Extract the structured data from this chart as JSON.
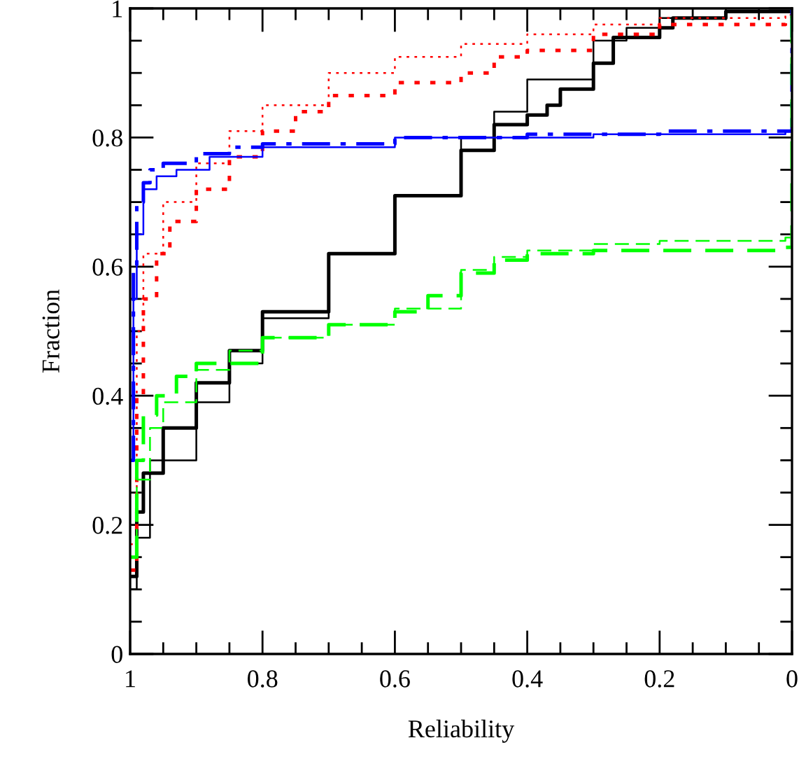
{
  "chart_data": {
    "type": "step",
    "xlabel": "Reliability",
    "ylabel": "Fraction",
    "xlim": [
      1,
      0
    ],
    "ylim": [
      0,
      1
    ],
    "xticks": [
      1,
      {
        "value": 0.95,
        "label": null
      },
      {
        "value": 0.9,
        "label": null
      },
      {
        "value": 0.85,
        "label": null
      },
      0.8,
      {
        "value": 0.75,
        "label": null
      },
      {
        "value": 0.7,
        "label": null
      },
      {
        "value": 0.65,
        "label": null
      },
      0.6,
      {
        "value": 0.55,
        "label": null
      },
      {
        "value": 0.5,
        "label": null
      },
      {
        "value": 0.45,
        "label": null
      },
      0.4,
      {
        "value": 0.35,
        "label": null
      },
      {
        "value": 0.3,
        "label": null
      },
      {
        "value": 0.25,
        "label": null
      },
      0.2,
      {
        "value": 0.15,
        "label": null
      },
      {
        "value": 0.1,
        "label": null
      },
      {
        "value": 0.05,
        "label": null
      },
      0
    ],
    "yticks": [
      0,
      {
        "value": 0.05,
        "label": null
      },
      {
        "value": 0.1,
        "label": null
      },
      {
        "value": 0.15,
        "label": null
      },
      0.2,
      {
        "value": 0.25,
        "label": null
      },
      {
        "value": 0.3,
        "label": null
      },
      {
        "value": 0.35,
        "label": null
      },
      0.4,
      {
        "value": 0.45,
        "label": null
      },
      {
        "value": 0.5,
        "label": null
      },
      {
        "value": 0.55,
        "label": null
      },
      0.6,
      {
        "value": 0.65,
        "label": null
      },
      {
        "value": 0.7,
        "label": null
      },
      {
        "value": 0.75,
        "label": null
      },
      0.8,
      {
        "value": 0.85,
        "label": null
      },
      {
        "value": 0.9,
        "label": null
      },
      {
        "value": 0.95,
        "label": null
      },
      1
    ],
    "series": [
      {
        "color": "#000000",
        "line_style": "solid",
        "x": [
          1,
          0.99,
          0.98,
          0.95,
          0.9,
          0.85,
          0.8,
          0.7,
          0.6,
          0.5,
          0.45,
          0.4,
          0.37,
          0.35,
          0.3,
          0.27,
          0.2,
          0.18,
          0.1,
          0
        ],
        "values": [
          0.12,
          0.22,
          0.28,
          0.35,
          0.42,
          0.47,
          0.53,
          0.62,
          0.71,
          0.78,
          0.82,
          0.835,
          0.85,
          0.875,
          0.915,
          0.955,
          0.97,
          0.985,
          0.995,
          1
        ]
      },
      {
        "color": "#000000",
        "line_style": "solid",
        "x": [
          1,
          0.99,
          0.97,
          0.9,
          0.85,
          0.8,
          0.7,
          0.6,
          0.5,
          0.45,
          0.4,
          0.3,
          0.25,
          0.2,
          0.1,
          0
        ],
        "values": [
          0.1,
          0.18,
          0.3,
          0.39,
          0.45,
          0.52,
          0.62,
          0.71,
          0.8,
          0.84,
          0.89,
          0.95,
          0.97,
          0.985,
          0.995,
          1
        ]
      },
      {
        "color": "#ff0000",
        "line_style": "dotted",
        "x": [
          1,
          0.99,
          0.98,
          0.96,
          0.94,
          0.9,
          0.85,
          0.8,
          0.75,
          0.7,
          0.6,
          0.5,
          0.45,
          0.4,
          0.3,
          0.2,
          0.01,
          0
        ],
        "values": [
          0.13,
          0.4,
          0.55,
          0.62,
          0.67,
          0.72,
          0.77,
          0.81,
          0.84,
          0.865,
          0.885,
          0.9,
          0.925,
          0.935,
          0.96,
          0.975,
          0.985,
          1
        ]
      },
      {
        "color": "#ff0000",
        "line_style": "dotted",
        "x": [
          1,
          0.99,
          0.98,
          0.95,
          0.9,
          0.85,
          0.8,
          0.7,
          0.6,
          0.5,
          0.4,
          0.3,
          0.2,
          0.01,
          0
        ],
        "values": [
          0.17,
          0.5,
          0.62,
          0.7,
          0.76,
          0.81,
          0.85,
          0.9,
          0.925,
          0.945,
          0.96,
          0.975,
          0.985,
          0.99,
          1
        ]
      },
      {
        "color": "#0000ff",
        "line_style": "dashdot",
        "x": [
          1,
          0.995,
          0.99,
          0.98,
          0.97,
          0.95,
          0.9,
          0.85,
          0.8,
          0.6,
          0.4,
          0.2,
          0.01,
          0
        ],
        "values": [
          0.3,
          0.6,
          0.7,
          0.73,
          0.75,
          0.76,
          0.775,
          0.785,
          0.79,
          0.8,
          0.805,
          0.81,
          0.81,
          1
        ]
      },
      {
        "color": "#0000ff",
        "line_style": "solid",
        "x": [
          1,
          0.995,
          0.99,
          0.98,
          0.96,
          0.93,
          0.88,
          0.8,
          0.6,
          0.3,
          0.01,
          0
        ],
        "values": [
          0.3,
          0.55,
          0.65,
          0.72,
          0.74,
          0.75,
          0.77,
          0.785,
          0.8,
          0.805,
          0.81,
          1
        ]
      },
      {
        "color": "#00ff00",
        "line_style": "dashed",
        "x": [
          1,
          0.99,
          0.98,
          0.96,
          0.93,
          0.9,
          0.8,
          0.7,
          0.6,
          0.55,
          0.5,
          0.45,
          0.4,
          0.3,
          0.2,
          0.01,
          0
        ],
        "values": [
          0.15,
          0.3,
          0.37,
          0.4,
          0.43,
          0.45,
          0.49,
          0.51,
          0.53,
          0.555,
          0.59,
          0.61,
          0.62,
          0.625,
          0.625,
          0.63,
          1
        ]
      },
      {
        "color": "#00ff00",
        "line_style": "dashed",
        "x": [
          1,
          0.99,
          0.97,
          0.95,
          0.9,
          0.85,
          0.8,
          0.7,
          0.6,
          0.5,
          0.45,
          0.4,
          0.3,
          0.2,
          0.01,
          0
        ],
        "values": [
          0.15,
          0.27,
          0.35,
          0.39,
          0.44,
          0.47,
          0.49,
          0.51,
          0.535,
          0.595,
          0.615,
          0.625,
          0.635,
          0.64,
          0.645,
          1
        ]
      }
    ]
  }
}
